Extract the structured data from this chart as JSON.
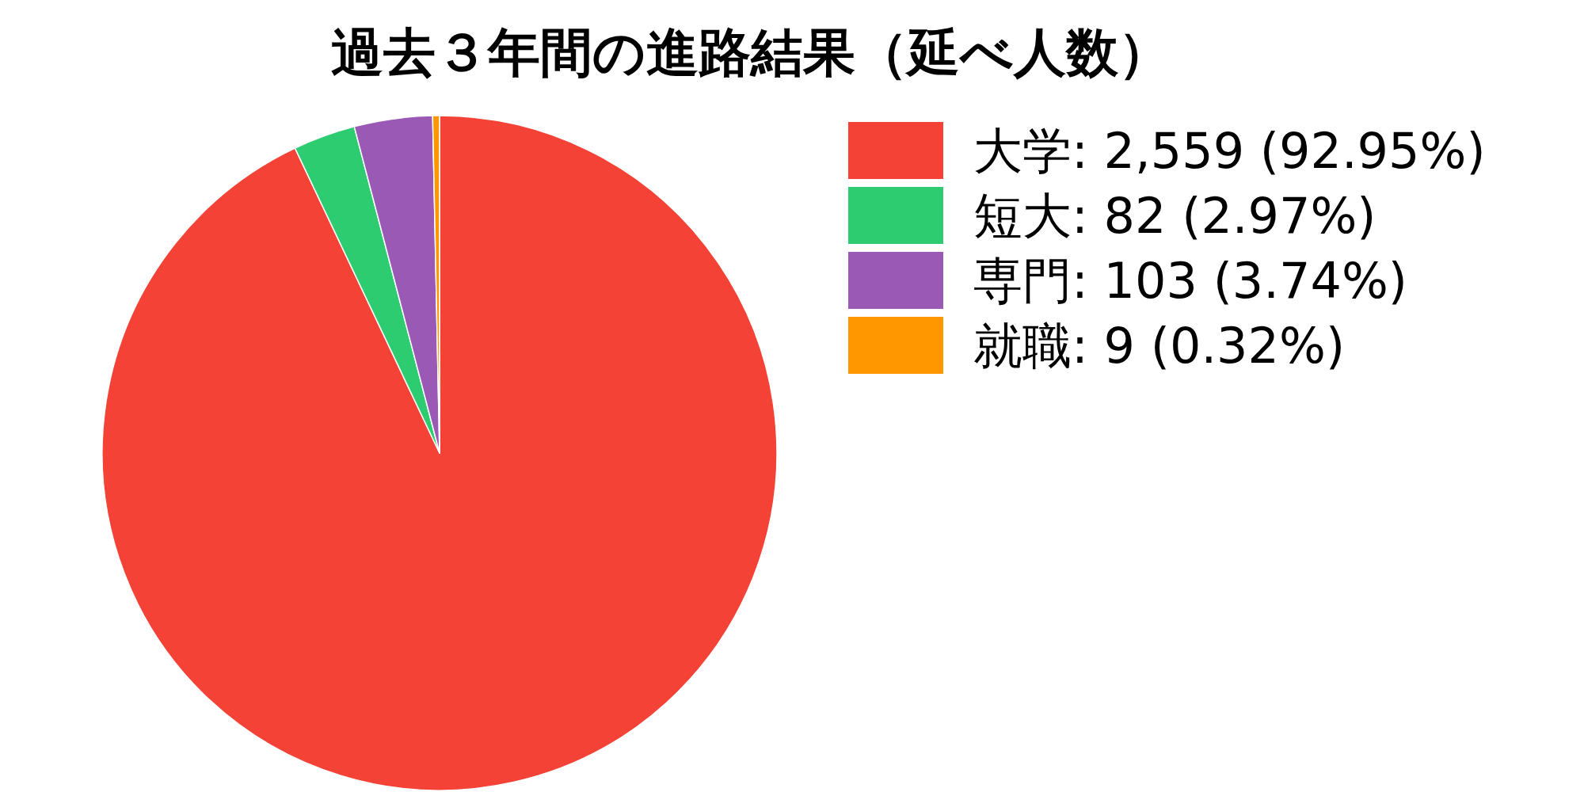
{
  "chart_data": {
    "type": "pie",
    "title": "過去３年間の進路結果（延べ人数）",
    "categories": [
      "大学",
      "短大",
      "専門",
      "就職"
    ],
    "values": [
      2559,
      82,
      103,
      9
    ],
    "value_labels": [
      "2,559 (92.95%)",
      "82 (2.97%)",
      "103 (3.74%)",
      "9 (0.32%)"
    ],
    "colors": [
      "#f44336",
      "#2ecc71",
      "#9b59b6",
      "#ff9800"
    ],
    "legend": "top right"
  }
}
